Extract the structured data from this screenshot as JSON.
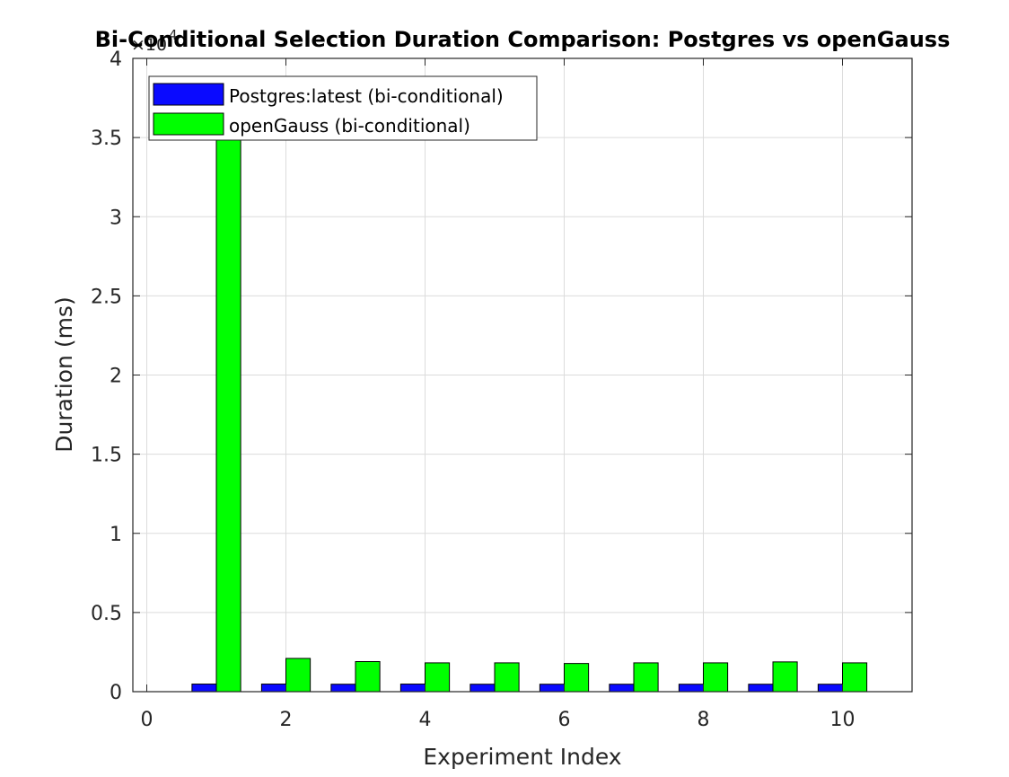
{
  "chart_data": {
    "type": "bar",
    "title": "Bi-Conditional Selection Duration Comparison: Postgres vs openGauss",
    "xlabel": "Experiment Index",
    "ylabel": "Duration (ms)",
    "y_exponent_label": "×10",
    "y_exponent_power": "4",
    "xlim": [
      -0.2,
      11
    ],
    "ylim": [
      0,
      40000
    ],
    "x_ticks": [
      0,
      2,
      4,
      6,
      8,
      10
    ],
    "x_tick_labels": [
      "0",
      "2",
      "4",
      "6",
      "8",
      "10"
    ],
    "y_ticks": [
      0,
      5000,
      10000,
      15000,
      20000,
      25000,
      30000,
      35000,
      40000
    ],
    "y_tick_labels": [
      "0",
      "0.5",
      "1",
      "1.5",
      "2",
      "2.5",
      "3",
      "3.5",
      "4"
    ],
    "grid": true,
    "legend_position": "top-left",
    "x": [
      1,
      2,
      3,
      4,
      5,
      6,
      7,
      8,
      9,
      10
    ],
    "series": [
      {
        "name": "Postgres:latest (bi-conditional)",
        "color": "#0a0aff",
        "values": [
          480,
          480,
          470,
          480,
          470,
          470,
          470,
          470,
          470,
          470
        ]
      },
      {
        "name": "openGauss (bi-conditional)",
        "color": "#00ff00",
        "values": [
          35000,
          2100,
          1900,
          1820,
          1820,
          1780,
          1820,
          1820,
          1880,
          1820
        ]
      }
    ]
  }
}
